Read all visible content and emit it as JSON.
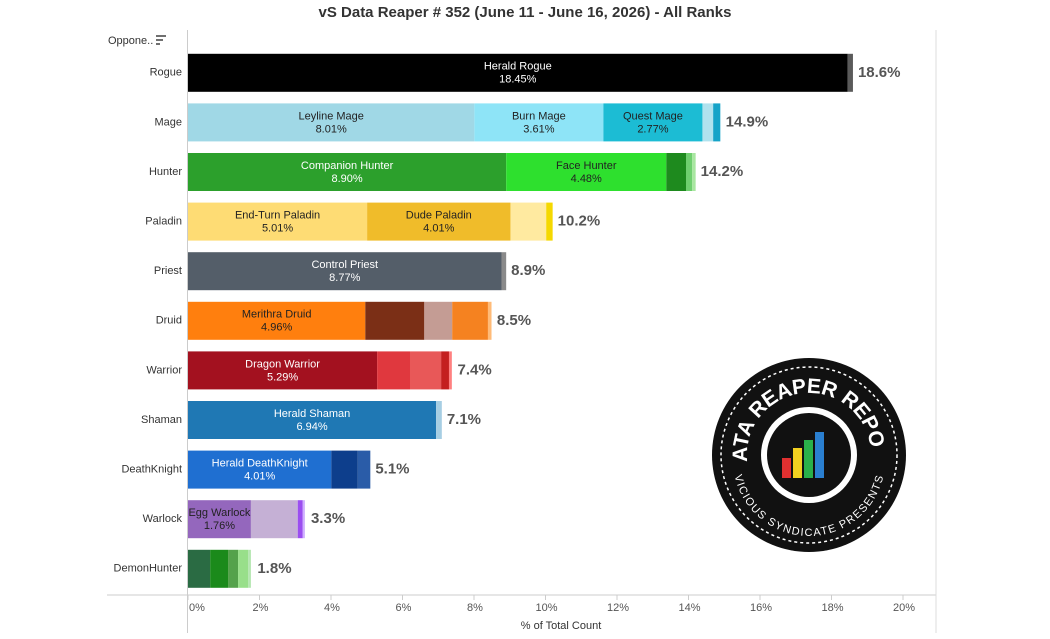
{
  "chart_data": {
    "type": "stacked-bar-horizontal",
    "title": "vS Data Reaper # 352 (June 11 - June 16, 2026) - All Ranks",
    "row_header": "Oppone..",
    "x_label": "% of Total Count",
    "xlim": [
      0,
      20.9
    ],
    "xticks": [
      {
        "value": 0,
        "label": "0%"
      },
      {
        "value": 2,
        "label": "2%"
      },
      {
        "value": 4,
        "label": "4%"
      },
      {
        "value": 6,
        "label": "6%"
      },
      {
        "value": 8,
        "label": "8%"
      },
      {
        "value": 10,
        "label": "10%"
      },
      {
        "value": 12,
        "label": "12%"
      },
      {
        "value": 14,
        "label": "14%"
      },
      {
        "value": 16,
        "label": "16%"
      },
      {
        "value": 18,
        "label": "18%"
      },
      {
        "value": 20,
        "label": "20%"
      }
    ],
    "categories": [
      "Rogue",
      "Mage",
      "Hunter",
      "Paladin",
      "Priest",
      "Druid",
      "Warrior",
      "Shaman",
      "DeathKnight",
      "Warlock",
      "DemonHunter"
    ],
    "bars": [
      {
        "total": 18.6,
        "total_label": "18.6%",
        "segments": [
          {
            "name": "Herald Rogue",
            "value": 18.45,
            "value_label": "18.45%",
            "color": "#000000",
            "label_color": "#ffffff"
          },
          {
            "value": 0.15,
            "color": "#5a5a5a"
          }
        ]
      },
      {
        "total": 14.9,
        "total_label": "14.9%",
        "segments": [
          {
            "name": "Leyline Mage",
            "value": 8.01,
            "value_label": "8.01%",
            "color": "#a0d8e6",
            "label_color": "#222222"
          },
          {
            "name": "Burn Mage",
            "value": 3.61,
            "value_label": "3.61%",
            "color": "#8ee4f7",
            "label_color": "#222222"
          },
          {
            "name": "Quest Mage",
            "value": 2.77,
            "value_label": "2.77%",
            "color": "#1cbcd4",
            "label_color": "#222222"
          },
          {
            "value": 0.3,
            "color": "#b0e2ee"
          },
          {
            "value": 0.2,
            "color": "#15a3c8"
          }
        ]
      },
      {
        "total": 14.2,
        "total_label": "14.2%",
        "segments": [
          {
            "name": "Companion Hunter",
            "value": 8.9,
            "value_label": "8.90%",
            "color": "#2ca02c",
            "label_color": "#ffffff"
          },
          {
            "name": "Face Hunter",
            "value": 4.48,
            "value_label": "4.48%",
            "color": "#2ee02e",
            "label_color": "#222222"
          },
          {
            "value": 0.55,
            "color": "#1e8a1e"
          },
          {
            "value": 0.17,
            "color": "#6fcf6f"
          },
          {
            "value": 0.1,
            "color": "#a8e6a0"
          }
        ]
      },
      {
        "total": 10.2,
        "total_label": "10.2%",
        "segments": [
          {
            "name": "End-Turn Paladin",
            "value": 5.01,
            "value_label": "5.01%",
            "color": "#fedc74",
            "label_color": "#222222"
          },
          {
            "name": "Dude Paladin",
            "value": 4.01,
            "value_label": "4.01%",
            "color": "#f0bc2a",
            "label_color": "#222222"
          },
          {
            "value": 1.0,
            "color": "#ffeaa0"
          },
          {
            "value": 0.18,
            "color": "#f5d800"
          }
        ]
      },
      {
        "total": 8.9,
        "total_label": "8.9%",
        "segments": [
          {
            "name": "Control Priest",
            "value": 8.77,
            "value_label": "8.77%",
            "color": "#545e69",
            "label_color": "#ffffff"
          },
          {
            "value": 0.13,
            "color": "#8a8a8a"
          }
        ]
      },
      {
        "total": 8.5,
        "total_label": "8.5%",
        "segments": [
          {
            "name": "Merithra Druid",
            "value": 4.96,
            "value_label": "4.96%",
            "color": "#ff7f0e",
            "label_color": "#222222"
          },
          {
            "value": 1.65,
            "color": "#7b2f16"
          },
          {
            "value": 0.78,
            "color": "#c49c94"
          },
          {
            "value": 1.0,
            "color": "#f58220"
          },
          {
            "value": 0.1,
            "color": "#ffbb78"
          }
        ]
      },
      {
        "total": 7.4,
        "total_label": "7.4%",
        "segments": [
          {
            "name": "Dragon Warrior",
            "value": 5.29,
            "value_label": "5.29%",
            "color": "#a3111f",
            "label_color": "#ffffff"
          },
          {
            "value": 0.92,
            "color": "#e0383e"
          },
          {
            "value": 0.87,
            "color": "#e85858"
          },
          {
            "value": 0.22,
            "color": "#c41f1f"
          },
          {
            "value": 0.08,
            "color": "#ff8080"
          }
        ]
      },
      {
        "total": 7.1,
        "total_label": "7.1%",
        "segments": [
          {
            "name": "Herald Shaman",
            "value": 6.94,
            "value_label": "6.94%",
            "color": "#1f78b4",
            "label_color": "#ffffff"
          },
          {
            "value": 0.16,
            "color": "#a6cee3"
          }
        ]
      },
      {
        "total": 5.1,
        "total_label": "5.1%",
        "segments": [
          {
            "name": "Herald DeathKnight",
            "value": 4.01,
            "value_label": "4.01%",
            "color": "#1f6fd1",
            "label_color": "#ffffff"
          },
          {
            "value": 0.74,
            "color": "#0d3e8c"
          },
          {
            "value": 0.35,
            "color": "#2a5ca8"
          }
        ]
      },
      {
        "total": 3.3,
        "total_label": "3.3%",
        "segments": [
          {
            "name": "Egg Warlock",
            "value": 1.76,
            "value_label": "1.76%",
            "color": "#9467bd",
            "label_color": "#222222"
          },
          {
            "value": 1.31,
            "color": "#c5b0d5"
          },
          {
            "value": 0.14,
            "color": "#9b4ef0"
          },
          {
            "value": 0.06,
            "color": "#d0b0ff"
          }
        ]
      },
      {
        "total": 1.8,
        "total_label": "1.8%",
        "segments": [
          {
            "value": 0.62,
            "color": "#2a6b43"
          },
          {
            "value": 0.5,
            "color": "#1b8a1b"
          },
          {
            "value": 0.28,
            "color": "#54a24b"
          },
          {
            "value": 0.28,
            "color": "#98df8a"
          },
          {
            "value": 0.08,
            "color": "#b5e6b0"
          }
        ]
      }
    ],
    "logo": {
      "title": "DATA REAPER REPORT",
      "subtitle": "VICIOUS SYNDICATE PRESENTS"
    }
  }
}
